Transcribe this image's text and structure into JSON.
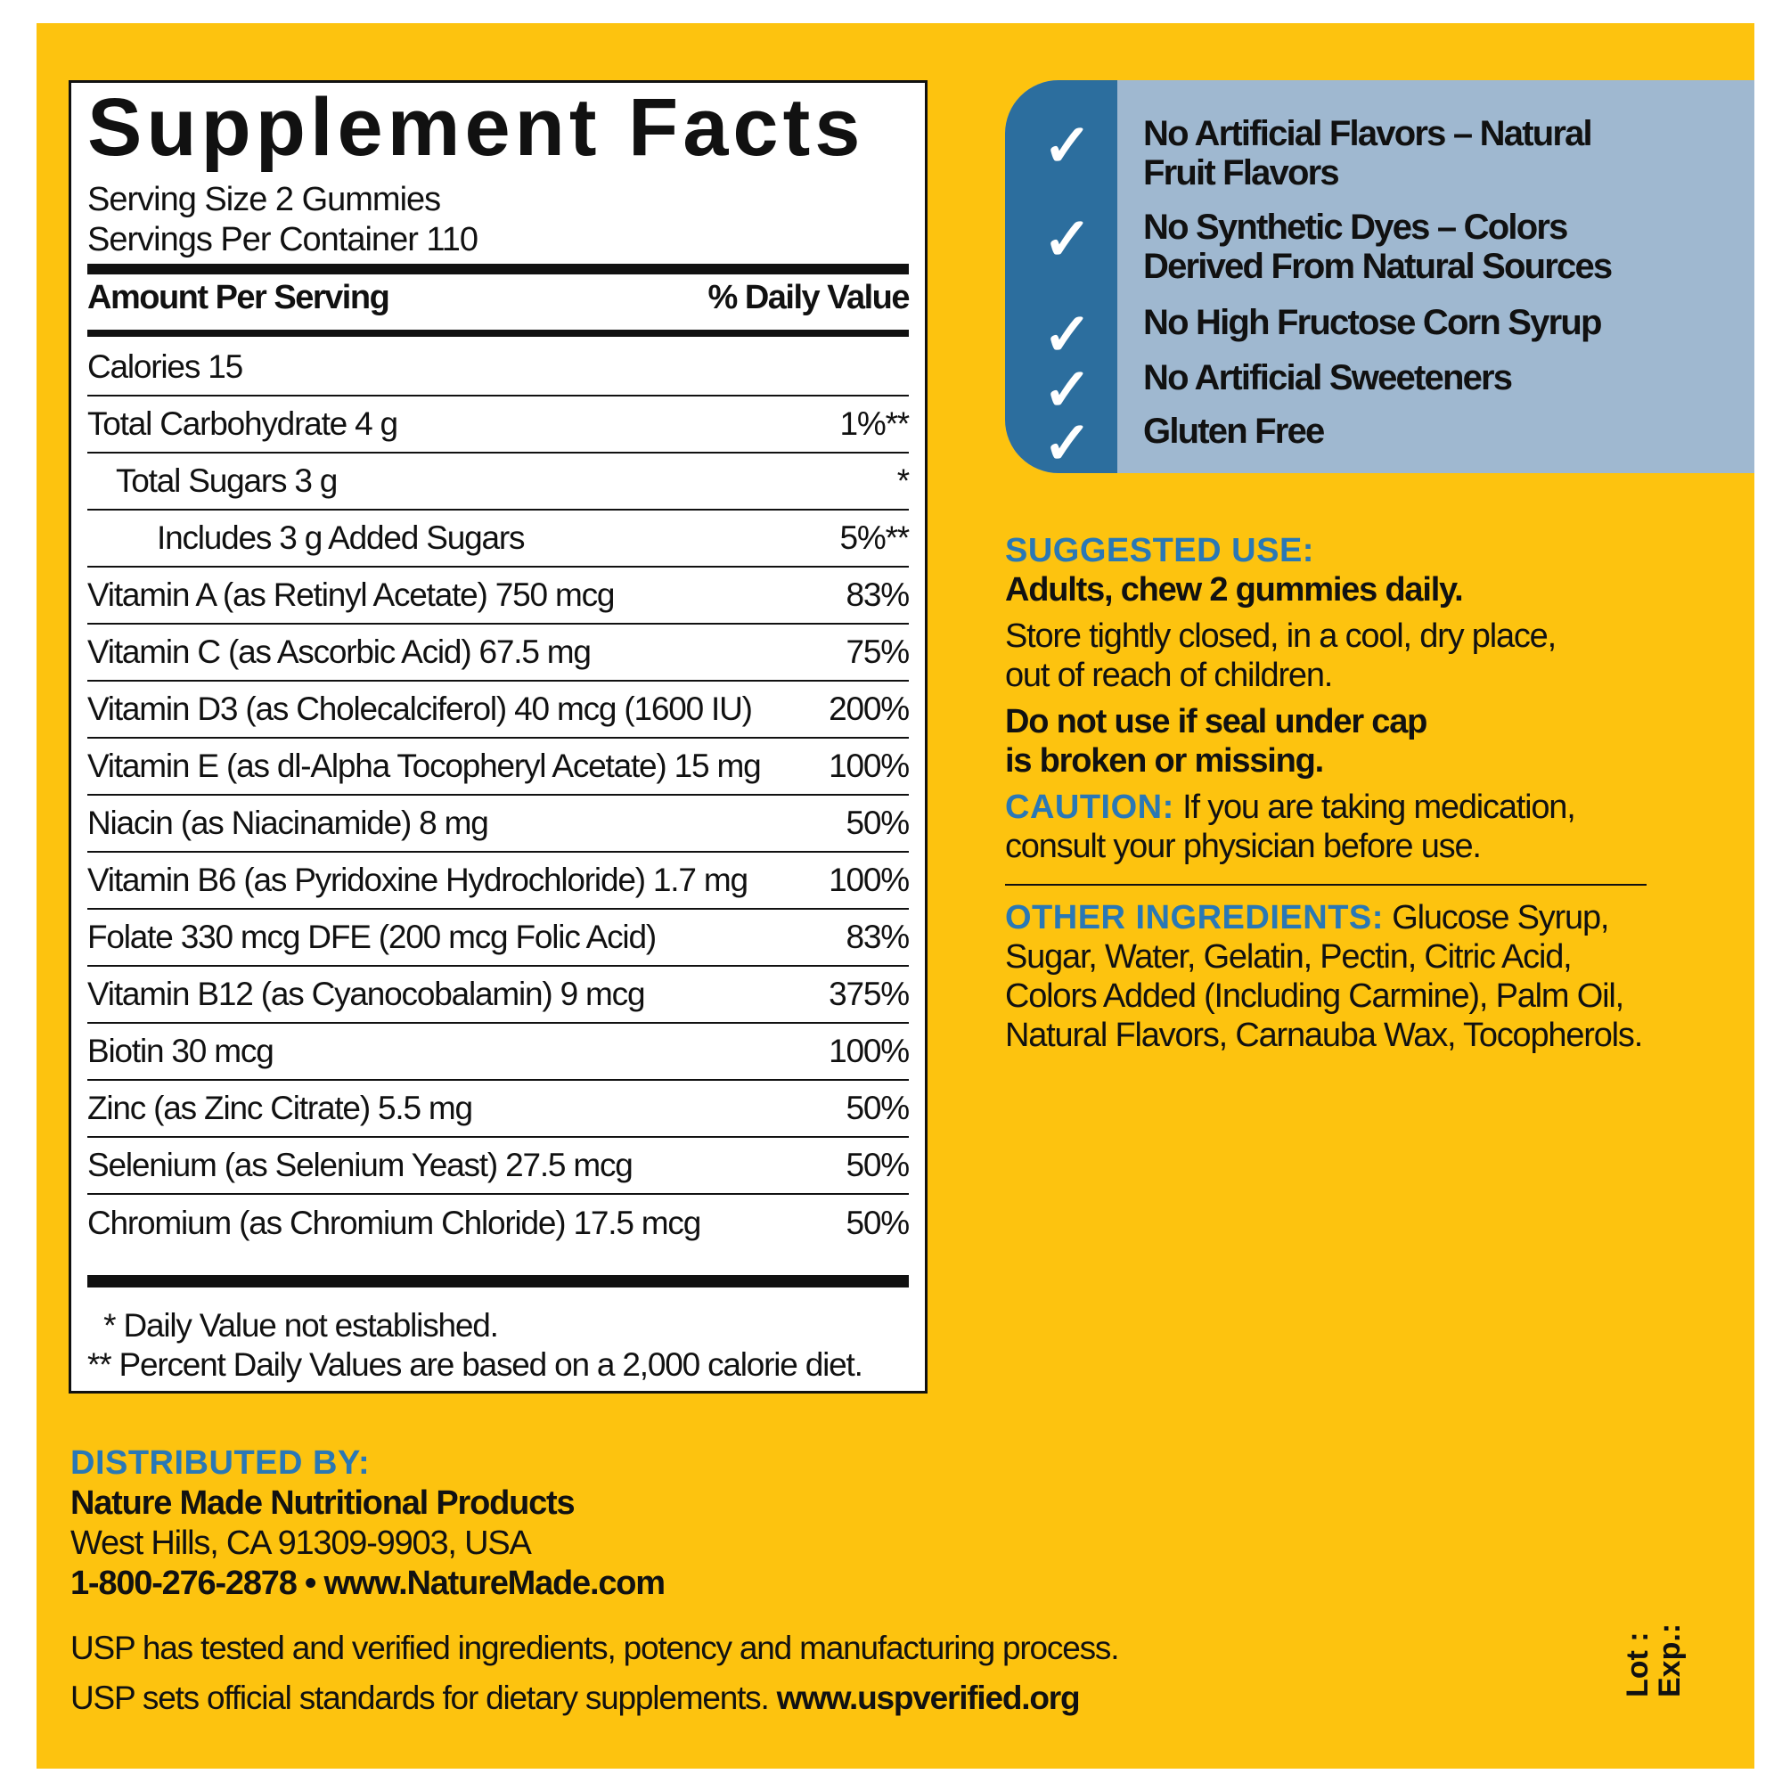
{
  "colors": {
    "background": "#FDC30F",
    "accent_blue": "#2A78B5",
    "stripe_blue": "#2C6E9E",
    "panel_blue": "#9FB8D0"
  },
  "facts": {
    "title": "Supplement Facts",
    "serving_size": "Serving Size 2 Gummies",
    "servings_per_container": "Servings Per Container 110",
    "header_amount": "Amount Per Serving",
    "header_dv": "% Daily Value",
    "rows": [
      {
        "name": "Calories  15",
        "dv": ""
      },
      {
        "name": "Total Carbohydrate  4 g",
        "dv": "1%**"
      },
      {
        "name": "Total Sugars  3 g",
        "dv": "*"
      },
      {
        "name": "Includes 3 g Added Sugars",
        "dv": "5%**"
      },
      {
        "name": "Vitamin A (as Retinyl Acetate)  750 mcg",
        "dv": "83%"
      },
      {
        "name": "Vitamin C (as Ascorbic Acid)  67.5 mg",
        "dv": "75%"
      },
      {
        "name": "Vitamin D3 (as Cholecalciferol)  40 mcg (1600 IU)",
        "dv": "200%"
      },
      {
        "name": "Vitamin E (as dl-Alpha Tocopheryl Acetate)  15 mg",
        "dv": "100%"
      },
      {
        "name": "Niacin (as Niacinamide)  8 mg",
        "dv": "50%"
      },
      {
        "name": "Vitamin B6 (as Pyridoxine Hydrochloride)  1.7 mg",
        "dv": "100%"
      },
      {
        "name": "Folate  330 mcg DFE (200 mcg Folic Acid)",
        "dv": "83%"
      },
      {
        "name": "Vitamin B12 (as Cyanocobalamin)  9 mcg",
        "dv": "375%"
      },
      {
        "name": "Biotin  30 mcg",
        "dv": "100%"
      },
      {
        "name": "Zinc (as Zinc Citrate)  5.5 mg",
        "dv": "50%"
      },
      {
        "name": "Selenium (as Selenium Yeast)  27.5 mcg",
        "dv": "50%"
      },
      {
        "name": "Chromium (as Chromium Chloride)  17.5 mcg",
        "dv": "50%"
      }
    ],
    "footnote_1": "  * Daily Value not established.",
    "footnote_2": "** Percent Daily Values are based on a 2,000 calorie diet."
  },
  "claims": {
    "icon": "check-icon",
    "items": [
      {
        "line1": "No Artificial Flavors – Natural",
        "line2": "Fruit Flavors"
      },
      {
        "line1": "No Synthetic Dyes – Colors",
        "line2": "Derived From Natural Sources"
      },
      {
        "line1": "No High Fructose Corn Syrup",
        "line2": ""
      },
      {
        "line1": "No Artificial Sweeteners",
        "line2": ""
      },
      {
        "line1": "Gluten Free",
        "line2": ""
      }
    ]
  },
  "suggested_use": {
    "heading": "SUGGESTED USE:",
    "directions": "Adults, chew 2 gummies daily.",
    "storage_1": "Store tightly closed, in a cool, dry place,",
    "storage_2": "out of reach of children.",
    "warning_1": "Do not use if seal under cap",
    "warning_2": "is broken or missing."
  },
  "caution": {
    "heading": "CAUTION:",
    "text_1": " If you are taking medication,",
    "text_2": "consult your physician before use."
  },
  "other_ingredients": {
    "heading": "OTHER INGREDIENTS:",
    "line1": " Glucose Syrup,",
    "line2": "Sugar, Water, Gelatin, Pectin, Citric Acid,",
    "line3": "Colors Added (Including Carmine), Palm Oil,",
    "line4": "Natural Flavors, Carnauba Wax, Tocopherols."
  },
  "distributor": {
    "heading": "DISTRIBUTED BY:",
    "company": "Nature Made Nutritional Products",
    "address": "West Hills, CA 91309-9903, USA",
    "contact": "1-800-276-2878 • www.NatureMade.com"
  },
  "usp": {
    "line1": "USP has tested and verified ingredients, potency and manufacturing process.",
    "line2": "USP sets official standards for dietary supplements. ",
    "link": "www.uspverified.org"
  },
  "lot_label": "Lot :",
  "exp_label": "Exp.:"
}
